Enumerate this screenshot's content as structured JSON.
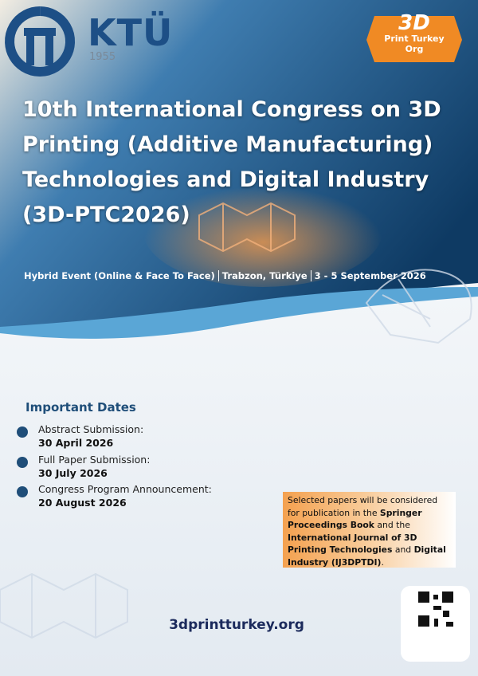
{
  "header": {
    "university": {
      "name": "KTÜ",
      "year": "1955"
    },
    "partner": {
      "mark": "3D",
      "name": "Print Turkey Org"
    }
  },
  "title": "10th International Congress on 3D Printing (Additive Manufacturing) Technologies and Digital Industry (3D-PTC2026)",
  "subtitle": [
    "Hybrid Event (Online & Face To Face)",
    "Trabzon, Türkiye",
    "3 - 5 September 2026"
  ],
  "important_dates": {
    "heading": "Important Dates",
    "items": [
      {
        "label": "Abstract Submission:",
        "date": "30 April 2026"
      },
      {
        "label": "Full Paper Submission:",
        "date": "30 July 2026"
      },
      {
        "label": "Congress Program Announcement:",
        "date": "20 August 2026"
      }
    ]
  },
  "note": [
    {
      "text": "Selected papers will be considered for publication in the ",
      "bold": false
    },
    {
      "text": "Springer Proceedings Book",
      "bold": true
    },
    {
      "text": " and the ",
      "bold": false
    },
    {
      "text": "International Journal of 3D Printing Technologies",
      "bold": true
    },
    {
      "text": " and ",
      "bold": false
    },
    {
      "text": "Digital Industry (IJ3DPTDI)",
      "bold": true
    },
    {
      "text": ".",
      "bold": false
    }
  ],
  "website": "3dprintturkey.org"
}
